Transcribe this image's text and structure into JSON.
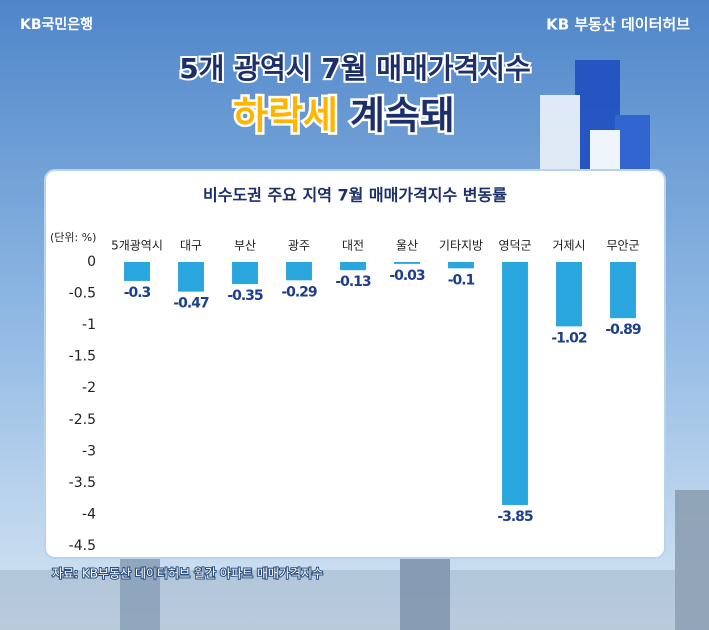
{
  "header": {
    "bank": "KB국민은행",
    "brand": "KB 부동산 데이터허브",
    "title": "5개 광역시 7월 매매가격지수",
    "subtitle_highlight": "하락세",
    "subtitle_rest": "계속돼"
  },
  "chart_data": {
    "type": "bar",
    "title": "비수도권 주요 지역 7월 매매가격지수 변동률",
    "unit_label": "(단위: %)",
    "categories": [
      "5개광역시",
      "대구",
      "부산",
      "광주",
      "대전",
      "울산",
      "기타지방",
      "영덕군",
      "거제시",
      "무안군"
    ],
    "values": [
      -0.3,
      -0.47,
      -0.35,
      -0.29,
      -0.13,
      -0.03,
      -0.1,
      -3.85,
      -1.02,
      -0.89
    ],
    "color": "#2aa6df",
    "ylim": [
      -4.5,
      0
    ],
    "yticks": [
      0,
      -0.5,
      -1,
      -1.5,
      -2,
      -2.5,
      -3,
      -3.5,
      -4,
      -4.5
    ]
  },
  "source": "자료: KB부동산 데이터허브 월간 아파트 매매가격지수"
}
